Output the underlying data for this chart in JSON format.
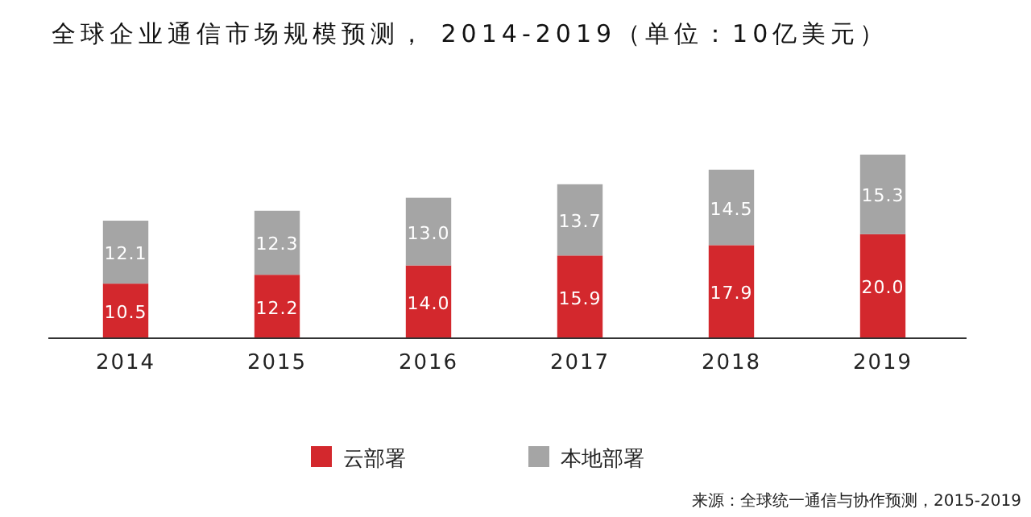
{
  "chart_data": {
    "type": "bar",
    "title": "全球企业通信市场规模预测， 2014-2019（单位：10亿美元）",
    "categories": [
      "2014",
      "2015",
      "2016",
      "2017",
      "2018",
      "2019"
    ],
    "stacked": true,
    "legend": "bottom",
    "series": [
      {
        "name": "云部署",
        "color": "#d3282d",
        "values": [
          10.5,
          12.2,
          14.0,
          15.9,
          17.9,
          20.0
        ],
        "value_labels": [
          "10.5",
          "12.2",
          "14.0",
          "15.9",
          "17.9",
          "20.0"
        ]
      },
      {
        "name": "本地部署",
        "color": "#a5a5a5",
        "values": [
          12.1,
          12.3,
          13.0,
          13.7,
          14.5,
          15.3
        ],
        "value_labels": [
          "12.1",
          "12.3",
          "13.0",
          "13.7",
          "14.5",
          "15.3"
        ]
      }
    ],
    "annotations": [
      "来源：全球统一通信与协作预测，2015-2019"
    ]
  }
}
